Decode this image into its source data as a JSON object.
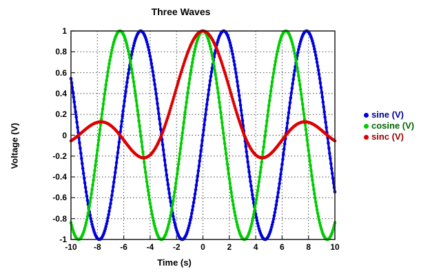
{
  "page": {
    "background": "#ffffff"
  },
  "chart_data": {
    "type": "line",
    "title": "Three Waves",
    "xlabel": "Time (s)",
    "ylabel": "Voltage (V)",
    "xlim": [
      -10,
      10
    ],
    "ylim": [
      -1,
      1
    ],
    "xticks": [
      -10,
      -8,
      -6,
      -4,
      -2,
      0,
      2,
      4,
      6,
      8,
      10
    ],
    "yticks": [
      1,
      0.8,
      0.6,
      0.4,
      0.2,
      0,
      -0.2,
      -0.4,
      -0.6,
      -0.8,
      -1
    ],
    "grid": "dotted",
    "grid_color": "#444444",
    "axis_color": "#1a1a1a",
    "legend_position": "right-outside",
    "series": [
      {
        "name": "sine",
        "legend_label": "sine (V)",
        "color": "#0000dd",
        "legend_text_color": "#000099",
        "formula": "sin(x)",
        "sample_points": [
          [
            -10,
            0.544
          ],
          [
            -9,
            -0.412
          ],
          [
            -8,
            -0.989
          ],
          [
            -7,
            -0.657
          ],
          [
            -6,
            0.279
          ],
          [
            -5,
            0.959
          ],
          [
            -4,
            0.757
          ],
          [
            -3,
            -0.141
          ],
          [
            -2,
            -0.909
          ],
          [
            -1,
            -0.841
          ],
          [
            0,
            0
          ],
          [
            1,
            0.841
          ],
          [
            2,
            0.909
          ],
          [
            3,
            0.141
          ],
          [
            4,
            -0.757
          ],
          [
            5,
            -0.959
          ],
          [
            6,
            -0.279
          ],
          [
            7,
            0.657
          ],
          [
            8,
            0.989
          ],
          [
            9,
            0.412
          ],
          [
            10,
            -0.544
          ]
        ]
      },
      {
        "name": "cosine",
        "legend_label": "cosine (V)",
        "color": "#00cc00",
        "legend_text_color": "#006600",
        "formula": "cos(x)",
        "sample_points": [
          [
            -10,
            -0.839
          ],
          [
            -9,
            -0.911
          ],
          [
            -8,
            -0.146
          ],
          [
            -7,
            0.754
          ],
          [
            -6,
            0.96
          ],
          [
            -5,
            0.284
          ],
          [
            -4,
            -0.654
          ],
          [
            -3,
            -0.99
          ],
          [
            -2,
            -0.416
          ],
          [
            -1,
            0.54
          ],
          [
            0,
            1
          ],
          [
            1,
            0.54
          ],
          [
            2,
            -0.416
          ],
          [
            3,
            -0.99
          ],
          [
            4,
            -0.654
          ],
          [
            5,
            0.284
          ],
          [
            6,
            0.96
          ],
          [
            7,
            0.754
          ],
          [
            8,
            -0.146
          ],
          [
            9,
            -0.911
          ],
          [
            10,
            -0.839
          ]
        ]
      },
      {
        "name": "sinc",
        "legend_label": "sinc (V)",
        "color": "#dd0000",
        "legend_text_color": "#990000",
        "formula": "sin(x)/x",
        "sample_points": [
          [
            -10,
            -0.054
          ],
          [
            -9,
            0.046
          ],
          [
            -8,
            0.124
          ],
          [
            -7,
            0.094
          ],
          [
            -6,
            -0.047
          ],
          [
            -5,
            -0.192
          ],
          [
            -4,
            -0.189
          ],
          [
            -3,
            0.047
          ],
          [
            -2,
            0.455
          ],
          [
            -1,
            0.841
          ],
          [
            0,
            1
          ],
          [
            1,
            0.841
          ],
          [
            2,
            0.455
          ],
          [
            3,
            0.047
          ],
          [
            4,
            -0.189
          ],
          [
            5,
            -0.192
          ],
          [
            6,
            -0.047
          ],
          [
            7,
            0.094
          ],
          [
            8,
            0.124
          ],
          [
            9,
            0.046
          ],
          [
            10,
            -0.054
          ]
        ]
      }
    ]
  }
}
